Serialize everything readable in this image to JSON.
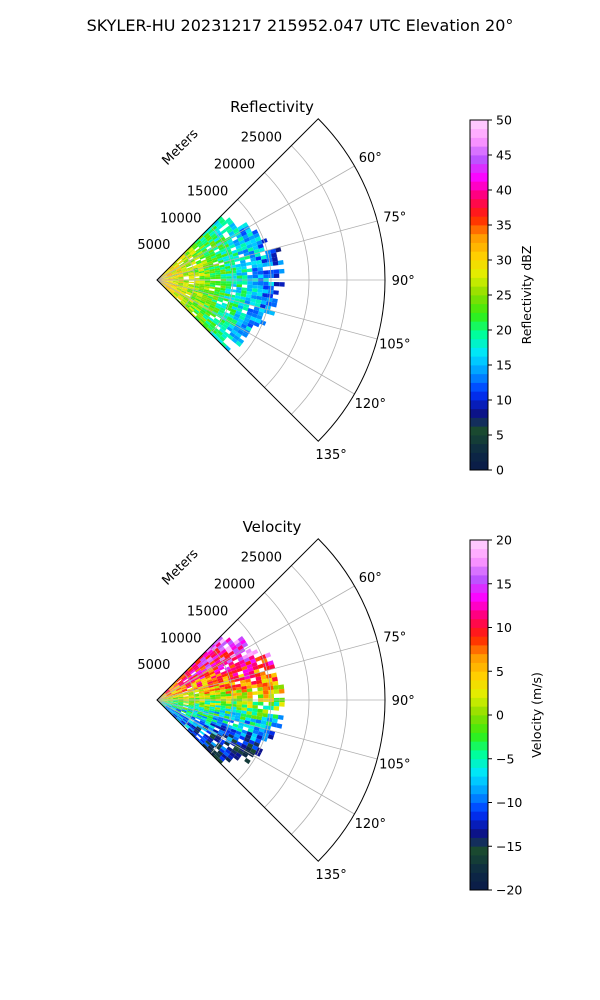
{
  "figure": {
    "suptitle": "SKYLER-HU  20231217  215952.047 UTC Elevation 20°"
  },
  "chart_data": [
    {
      "type": "polar-sector",
      "title": "Reflectivity",
      "range_label": "Meters",
      "range_ticks": [
        5000,
        10000,
        15000,
        20000,
        25000
      ],
      "range_max": 30000,
      "azimuth_range_deg": [
        45,
        135
      ],
      "azimuth_ticks": [
        "60°",
        "75°",
        "90°",
        "105°",
        "120°",
        "135°"
      ],
      "grid": true,
      "echo_extent_m": 14500,
      "colorbar": {
        "label": "Reflectivity dBZ",
        "min": 0,
        "max": 50,
        "ticks": [
          "0",
          "5",
          "10",
          "15",
          "20",
          "25",
          "30",
          "35",
          "40",
          "45",
          "50"
        ],
        "stops": [
          "#0b1a4a",
          "#0d2b43",
          "#1a4a2e",
          "#0b0f8f",
          "#0033ff",
          "#0099ff",
          "#00e5ff",
          "#00ff99",
          "#33ee11",
          "#88dd00",
          "#e0f000",
          "#ffd000",
          "#ff9a00",
          "#ff2200",
          "#ff0066",
          "#ff00ff",
          "#bb55ff",
          "#ff99ff",
          "#ffd6ff"
        ]
      }
    },
    {
      "type": "polar-sector",
      "title": "Velocity",
      "range_label": "Meters",
      "range_ticks": [
        5000,
        10000,
        15000,
        20000,
        25000
      ],
      "range_max": 30000,
      "azimuth_range_deg": [
        45,
        135
      ],
      "azimuth_ticks": [
        "60°",
        "75°",
        "90°",
        "105°",
        "120°",
        "135°"
      ],
      "grid": true,
      "echo_extent_m": 14500,
      "colorbar": {
        "label": "Velocity (m/s)",
        "min": -20,
        "max": 20,
        "ticks": [
          "−20",
          "−15",
          "−10",
          "−5",
          "0",
          "5",
          "10",
          "15",
          "20"
        ],
        "stops": [
          "#0b1a4a",
          "#0d2b43",
          "#1a4a2e",
          "#0b0f8f",
          "#0033ff",
          "#0099ff",
          "#00e5ff",
          "#00ff99",
          "#33ee11",
          "#88dd00",
          "#e0f000",
          "#ffd000",
          "#ff9a00",
          "#ff2200",
          "#ff0066",
          "#ff00ff",
          "#bb55ff",
          "#ff99ff",
          "#ffd6ff"
        ]
      }
    }
  ]
}
